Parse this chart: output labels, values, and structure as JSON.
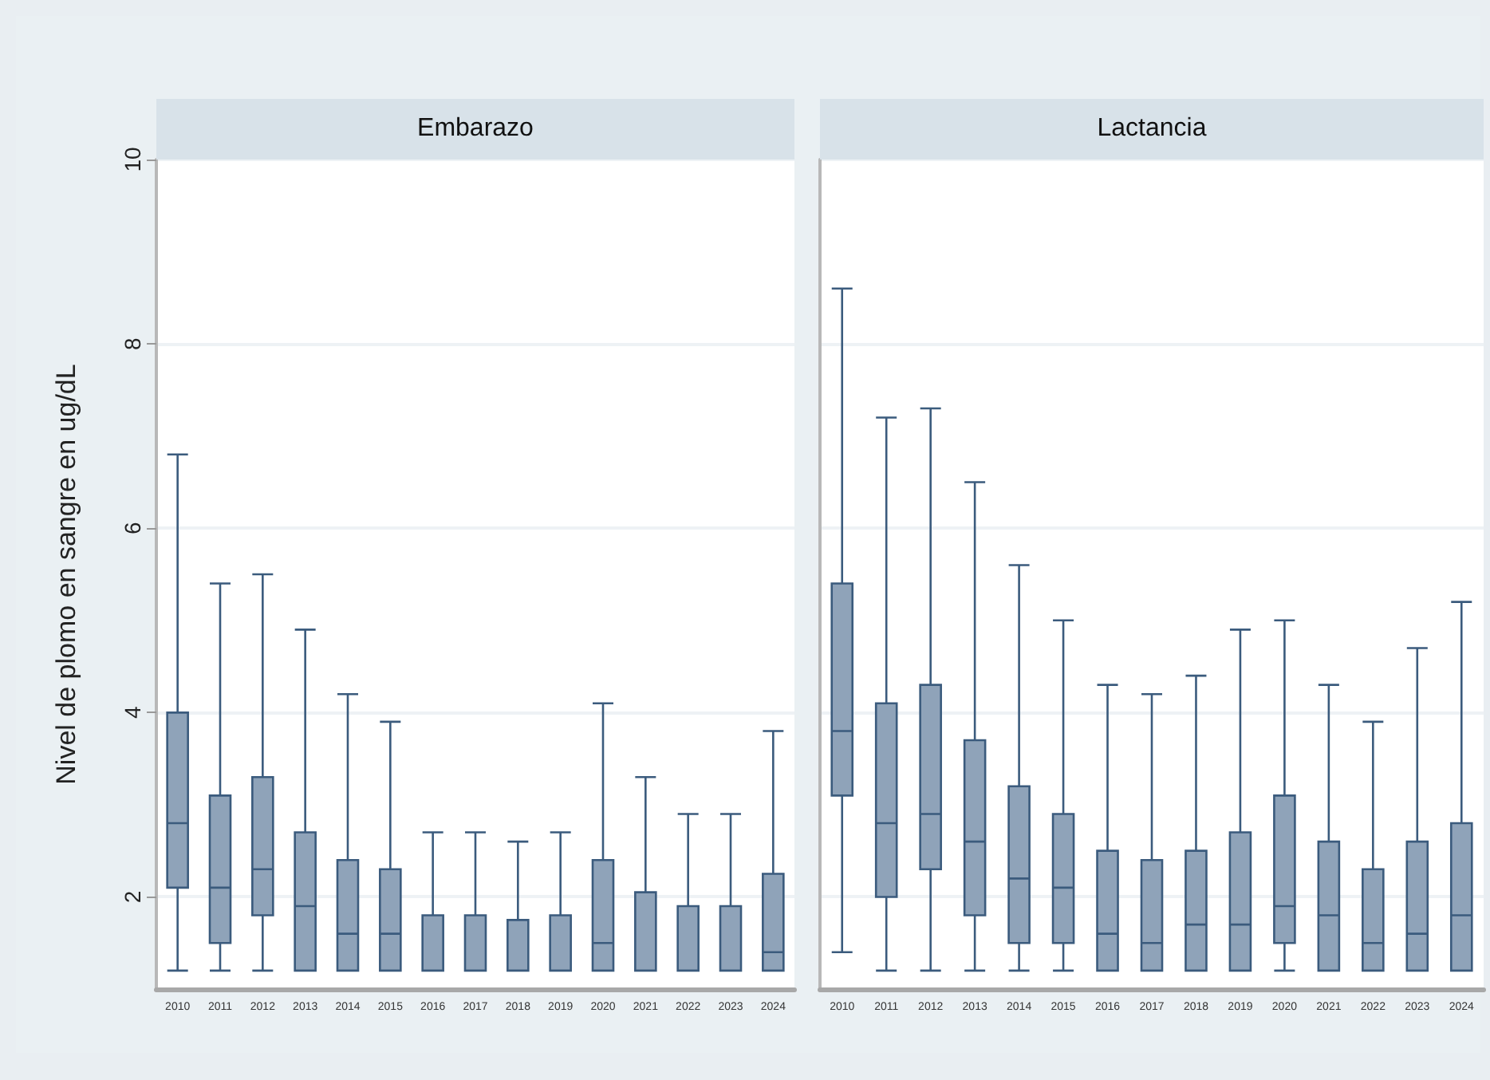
{
  "chart_data": [
    {
      "type": "box",
      "title": "Embarazo",
      "ylabel": "Nivel de plomo en sangre en ug/dL",
      "categories": [
        "2010",
        "2011",
        "2012",
        "2013",
        "2014",
        "2015",
        "2016",
        "2017",
        "2018",
        "2019",
        "2020",
        "2021",
        "2022",
        "2023",
        "2024"
      ],
      "ylim": [
        1,
        10
      ],
      "yticks": [
        2,
        4,
        6,
        8,
        10
      ],
      "grid": "y",
      "series": [
        {
          "color": "#8fa3b9",
          "boxes": [
            {
              "low": 1.2,
              "q1": 2.1,
              "median": 2.8,
              "q3": 4.0,
              "high": 6.8
            },
            {
              "low": 1.2,
              "q1": 1.5,
              "median": 2.1,
              "q3": 3.1,
              "high": 5.4
            },
            {
              "low": 1.2,
              "q1": 1.8,
              "median": 2.3,
              "q3": 3.3,
              "high": 5.5
            },
            {
              "low": 1.2,
              "q1": 1.2,
              "median": 1.9,
              "q3": 2.7,
              "high": 4.9
            },
            {
              "low": 1.2,
              "q1": 1.2,
              "median": 1.6,
              "q3": 2.4,
              "high": 4.2
            },
            {
              "low": 1.2,
              "q1": 1.2,
              "median": 1.6,
              "q3": 2.3,
              "high": 3.9
            },
            {
              "low": 1.2,
              "q1": 1.2,
              "median": 1.2,
              "q3": 1.8,
              "high": 2.7
            },
            {
              "low": 1.2,
              "q1": 1.2,
              "median": 1.2,
              "q3": 1.8,
              "high": 2.7
            },
            {
              "low": 1.2,
              "q1": 1.2,
              "median": 1.2,
              "q3": 1.75,
              "high": 2.6
            },
            {
              "low": 1.2,
              "q1": 1.2,
              "median": 1.2,
              "q3": 1.8,
              "high": 2.7
            },
            {
              "low": 1.2,
              "q1": 1.2,
              "median": 1.5,
              "q3": 2.4,
              "high": 4.1
            },
            {
              "low": 1.2,
              "q1": 1.2,
              "median": 1.2,
              "q3": 2.05,
              "high": 3.3
            },
            {
              "low": 1.2,
              "q1": 1.2,
              "median": 1.2,
              "q3": 1.9,
              "high": 2.9
            },
            {
              "low": 1.2,
              "q1": 1.2,
              "median": 1.2,
              "q3": 1.9,
              "high": 2.9
            },
            {
              "low": 1.2,
              "q1": 1.2,
              "median": 1.4,
              "q3": 2.25,
              "high": 3.8
            }
          ]
        }
      ]
    },
    {
      "type": "box",
      "title": "Lactancia",
      "categories": [
        "2010",
        "2011",
        "2012",
        "2013",
        "2014",
        "2015",
        "2016",
        "2017",
        "2018",
        "2019",
        "2020",
        "2021",
        "2022",
        "2023",
        "2024"
      ],
      "ylim": [
        1,
        10
      ],
      "yticks": [
        2,
        4,
        6,
        8,
        10
      ],
      "grid": "y",
      "tick_labels": "x",
      "series": [
        {
          "color": "#8fa3b9",
          "boxes": [
            {
              "low": 1.4,
              "q1": 3.1,
              "median": 3.8,
              "q3": 5.4,
              "high": 8.6
            },
            {
              "low": 1.2,
              "q1": 2.0,
              "median": 2.8,
              "q3": 4.1,
              "high": 7.2
            },
            {
              "low": 1.2,
              "q1": 2.3,
              "median": 2.9,
              "q3": 4.3,
              "high": 7.3
            },
            {
              "low": 1.2,
              "q1": 1.8,
              "median": 2.6,
              "q3": 3.7,
              "high": 6.5
            },
            {
              "low": 1.2,
              "q1": 1.5,
              "median": 2.2,
              "q3": 3.2,
              "high": 5.6
            },
            {
              "low": 1.2,
              "q1": 1.5,
              "median": 2.1,
              "q3": 2.9,
              "high": 5.0
            },
            {
              "low": 1.2,
              "q1": 1.2,
              "median": 1.6,
              "q3": 2.5,
              "high": 4.3
            },
            {
              "low": 1.2,
              "q1": 1.2,
              "median": 1.5,
              "q3": 2.4,
              "high": 4.2
            },
            {
              "low": 1.2,
              "q1": 1.2,
              "median": 1.7,
              "q3": 2.5,
              "high": 4.4
            },
            {
              "low": 1.2,
              "q1": 1.2,
              "median": 1.7,
              "q3": 2.7,
              "high": 4.9
            },
            {
              "low": 1.2,
              "q1": 1.5,
              "median": 1.9,
              "q3": 3.1,
              "high": 5.0
            },
            {
              "low": 1.2,
              "q1": 1.2,
              "median": 1.8,
              "q3": 2.6,
              "high": 4.3
            },
            {
              "low": 1.2,
              "q1": 1.2,
              "median": 1.5,
              "q3": 2.3,
              "high": 3.9
            },
            {
              "low": 1.2,
              "q1": 1.2,
              "median": 1.6,
              "q3": 2.6,
              "high": 4.7
            },
            {
              "low": 1.2,
              "q1": 1.2,
              "median": 1.8,
              "q3": 2.8,
              "high": 5.2
            }
          ]
        }
      ]
    }
  ]
}
